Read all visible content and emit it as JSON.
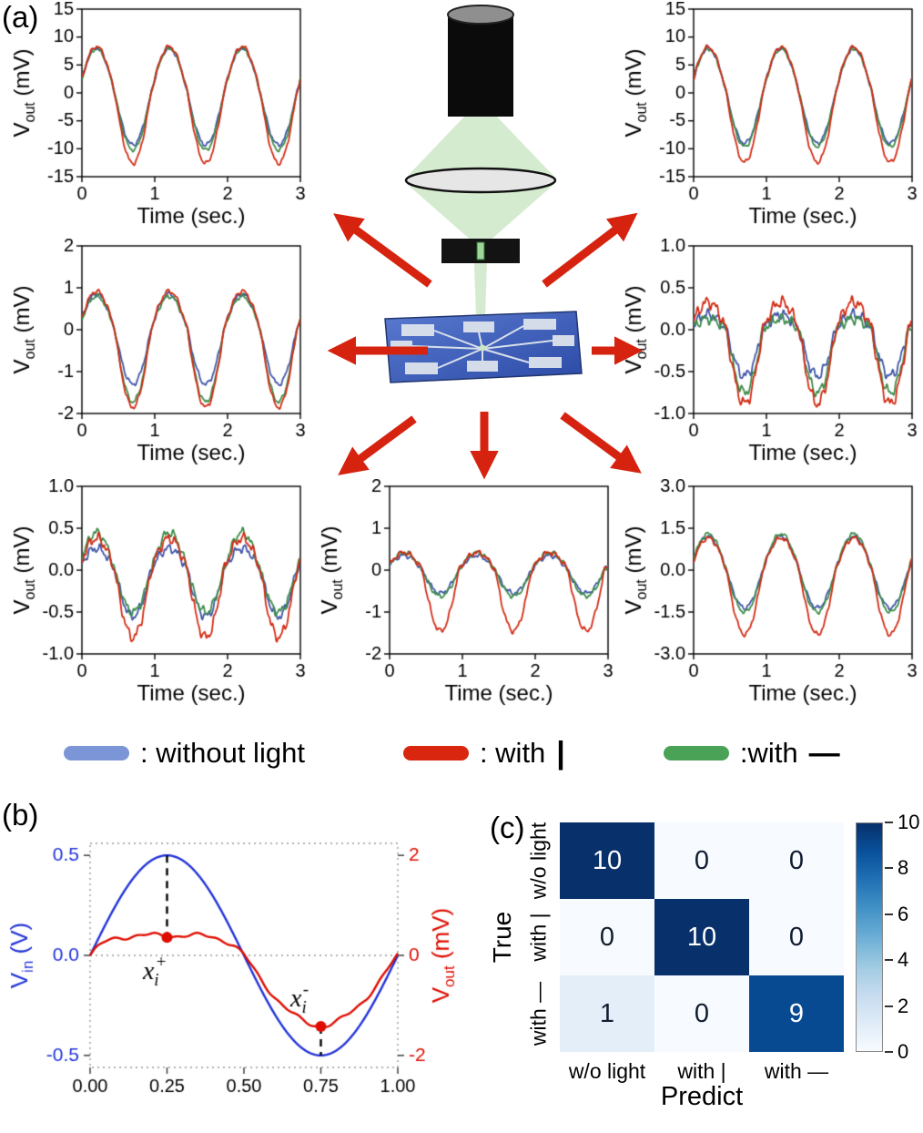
{
  "panels": {
    "a": {
      "label": "(a)"
    },
    "b": {
      "label": "(b)"
    },
    "c": {
      "label": "(c)"
    }
  },
  "axis_labels": {
    "y": {
      "main": "V",
      "sub": "out",
      "rest": " (mV)"
    },
    "x": "Time (sec.)"
  },
  "legend": {
    "items": [
      {
        "color_key": "legend_blue",
        "label": ": without light",
        "symbol": ""
      },
      {
        "color_key": "legend_red",
        "label": ": with",
        "symbol": "|"
      },
      {
        "color_key": "legend_green",
        "label": ":with",
        "symbol": "—"
      }
    ]
  },
  "colors": {
    "blue": "#4156a8",
    "red": "#d22c15",
    "green": "#3d8c49",
    "legend_blue": "#7b95d6",
    "legend_red": "#d8260f",
    "legend_green": "#4aa257",
    "arrow": "#d62310",
    "b_blue": "#2133d6",
    "b_red": "#de0d00",
    "beam_green": "#b9ddb0",
    "chip_blue": "#3c5fc2"
  },
  "chart_data": [
    {
      "id": "plot-a-top-left",
      "type": "line",
      "xlabel": "Time (sec.)",
      "ylabel": "Vout (mV)",
      "xlim": [
        0,
        3
      ],
      "xticks": [
        "0",
        "1",
        "2",
        "3"
      ],
      "ylim": [
        -15,
        15
      ],
      "yticks": [
        "15",
        "10",
        "5",
        "0",
        "-5",
        "-10",
        "-15"
      ],
      "period_sec": 1.0,
      "peak_time_sec": 0.2,
      "series": [
        {
          "name": "without light",
          "color_key": "blue",
          "amp_pos": 8.0,
          "amp_neg": 9.3,
          "noise": 0.18,
          "seed": 1
        },
        {
          "name": "with —",
          "color_key": "green",
          "amp_pos": 8.0,
          "amp_neg": 10.2,
          "noise": 0.18,
          "seed": 3
        },
        {
          "name": "with |",
          "color_key": "red",
          "amp_pos": 8.3,
          "amp_neg": 12.6,
          "noise": 0.2,
          "seed": 2
        }
      ]
    },
    {
      "id": "plot-a-top-right",
      "type": "line",
      "xlabel": "Time (sec.)",
      "ylabel": "Vout (mV)",
      "xlim": [
        0,
        3
      ],
      "xticks": [
        "0",
        "1",
        "2",
        "3"
      ],
      "ylim": [
        -15,
        15
      ],
      "yticks": [
        "15",
        "10",
        "5",
        "0",
        "-5",
        "-10",
        "-15"
      ],
      "period_sec": 1.0,
      "peak_time_sec": 0.2,
      "series": [
        {
          "name": "without light",
          "color_key": "blue",
          "amp_pos": 8.0,
          "amp_neg": 9.0,
          "noise": 0.18,
          "seed": 4
        },
        {
          "name": "with —",
          "color_key": "green",
          "amp_pos": 7.9,
          "amp_neg": 9.6,
          "noise": 0.18,
          "seed": 6
        },
        {
          "name": "with |",
          "color_key": "red",
          "amp_pos": 8.2,
          "amp_neg": 12.4,
          "noise": 0.2,
          "seed": 5
        }
      ]
    },
    {
      "id": "plot-a-middle-left",
      "type": "line",
      "xlabel": "Time (sec.)",
      "ylabel": "Vout (mV)",
      "xlim": [
        0,
        3
      ],
      "xticks": [
        "0",
        "1",
        "2",
        "3"
      ],
      "ylim": [
        -2,
        2
      ],
      "yticks": [
        "2",
        "1",
        "0",
        "-1",
        "-2"
      ],
      "period_sec": 1.0,
      "peak_time_sec": 0.2,
      "series": [
        {
          "name": "without light",
          "color_key": "blue",
          "amp_pos": 0.85,
          "amp_neg": 1.3,
          "noise": 0.03,
          "seed": 7
        },
        {
          "name": "with —",
          "color_key": "green",
          "amp_pos": 0.8,
          "amp_neg": 1.72,
          "noise": 0.03,
          "seed": 9
        },
        {
          "name": "with |",
          "color_key": "red",
          "amp_pos": 0.92,
          "amp_neg": 1.85,
          "noise": 0.03,
          "seed": 8
        }
      ]
    },
    {
      "id": "plot-a-middle-right",
      "type": "line",
      "xlabel": "Time (sec.)",
      "ylabel": "Vout (mV)",
      "xlim": [
        0,
        3
      ],
      "xticks": [
        "0",
        "1",
        "2",
        "3"
      ],
      "ylim": [
        -1,
        1
      ],
      "yticks": [
        "1.0",
        "0.5",
        "0.0",
        "-0.5",
        "-1.0"
      ],
      "period_sec": 1.0,
      "peak_time_sec": 0.2,
      "series": [
        {
          "name": "without light",
          "color_key": "blue",
          "amp_pos": 0.18,
          "amp_neg": 0.55,
          "noise": 0.035,
          "seed": 10
        },
        {
          "name": "with —",
          "color_key": "green",
          "amp_pos": 0.13,
          "amp_neg": 0.75,
          "noise": 0.035,
          "seed": 12
        },
        {
          "name": "with |",
          "color_key": "red",
          "amp_pos": 0.33,
          "amp_neg": 0.88,
          "noise": 0.04,
          "seed": 11
        }
      ]
    },
    {
      "id": "plot-a-bottom-left",
      "type": "line",
      "xlabel": "Time (sec.)",
      "ylabel": "Vout (mV)",
      "xlim": [
        0,
        3
      ],
      "xticks": [
        "0",
        "1",
        "2",
        "3"
      ],
      "ylim": [
        -1,
        1
      ],
      "yticks": [
        "1.0",
        "0.5",
        "0.0",
        "-0.5",
        "-1.0"
      ],
      "period_sec": 1.0,
      "peak_time_sec": 0.2,
      "series": [
        {
          "name": "without light",
          "color_key": "blue",
          "amp_pos": 0.26,
          "amp_neg": 0.55,
          "noise": 0.03,
          "seed": 13
        },
        {
          "name": "with —",
          "color_key": "green",
          "amp_pos": 0.45,
          "amp_neg": 0.5,
          "noise": 0.03,
          "seed": 15
        },
        {
          "name": "with |",
          "color_key": "red",
          "amp_pos": 0.38,
          "amp_neg": 0.8,
          "noise": 0.035,
          "seed": 14
        }
      ]
    },
    {
      "id": "plot-a-bottom-center",
      "type": "line",
      "xlabel": "Time (sec.)",
      "ylabel": "Vout (mV)",
      "xlim": [
        0,
        3
      ],
      "xticks": [
        "0",
        "1",
        "2",
        "3"
      ],
      "ylim": [
        -2,
        2
      ],
      "yticks": [
        "2",
        "1",
        "0",
        "-1",
        "-2"
      ],
      "period_sec": 1.0,
      "peak_time_sec": 0.2,
      "series": [
        {
          "name": "without light",
          "color_key": "blue",
          "amp_pos": 0.35,
          "amp_neg": 0.55,
          "noise": 0.03,
          "seed": 16
        },
        {
          "name": "with —",
          "color_key": "green",
          "amp_pos": 0.42,
          "amp_neg": 0.62,
          "noise": 0.03,
          "seed": 18
        },
        {
          "name": "with |",
          "color_key": "red",
          "amp_pos": 0.42,
          "amp_neg": 1.45,
          "noise": 0.035,
          "seed": 17
        }
      ]
    },
    {
      "id": "plot-a-bottom-right",
      "type": "line",
      "xlabel": "Time (sec.)",
      "ylabel": "Vout (mV)",
      "xlim": [
        0,
        3
      ],
      "xticks": [
        "0",
        "1",
        "2",
        "3"
      ],
      "ylim": [
        -3,
        3
      ],
      "yticks": [
        "3.0",
        "1.5",
        "0.0",
        "-1.5",
        "-3.0"
      ],
      "period_sec": 1.0,
      "peak_time_sec": 0.2,
      "series": [
        {
          "name": "without light",
          "color_key": "blue",
          "amp_pos": 1.22,
          "amp_neg": 1.35,
          "noise": 0.04,
          "seed": 19
        },
        {
          "name": "with —",
          "color_key": "green",
          "amp_pos": 1.3,
          "amp_neg": 1.5,
          "noise": 0.04,
          "seed": 21
        },
        {
          "name": "with |",
          "color_key": "red",
          "amp_pos": 1.15,
          "amp_neg": 2.3,
          "noise": 0.045,
          "seed": 20
        }
      ]
    },
    {
      "id": "panel-b",
      "type": "line",
      "xlim": [
        0,
        1
      ],
      "xticks": [
        "0.00",
        "0.25",
        "0.50",
        "0.75",
        "1.00"
      ],
      "left_axis": {
        "label": {
          "main": "V",
          "sub": "in",
          "rest": " (V)"
        },
        "ylim": [
          -0.56,
          0.56
        ],
        "yticks": [
          "0.5",
          "0.0",
          "-0.5"
        ]
      },
      "right_axis": {
        "label": {
          "main": "V",
          "sub": "out",
          "rest": " (mV)"
        },
        "ylim": [
          -2.24,
          2.24
        ],
        "yticks": [
          "2",
          "0",
          "-2"
        ]
      },
      "vin_amplitude_V": 0.5,
      "vout_peak_mV": 0.4,
      "vout_min_mV": -1.4,
      "markers": [
        {
          "x": 0.25,
          "label": {
            "main": "x",
            "sub": "i",
            "sup": "+"
          }
        },
        {
          "x": 0.75,
          "label": {
            "main": "x",
            "sub": "i",
            "sup": "-"
          }
        }
      ]
    },
    {
      "id": "confusion-matrix",
      "type": "heatmap",
      "true_label": "True",
      "predict_label": "Predict",
      "row_labels": [
        "w/o light",
        "with |",
        "with —"
      ],
      "col_labels": [
        "w/o light",
        "with |",
        "with —"
      ],
      "values": [
        [
          10,
          0,
          0
        ],
        [
          0,
          10,
          0
        ],
        [
          1,
          0,
          9
        ]
      ],
      "vmin": 0,
      "vmax": 10,
      "colorbar_ticks": [
        "10",
        "8",
        "6",
        "4",
        "2",
        "0"
      ],
      "colormap_stops": [
        "#f7fbff",
        "#deebf7",
        "#c6dbef",
        "#9ecae1",
        "#6baed6",
        "#4292c6",
        "#2171b5",
        "#08519c",
        "#08306b"
      ]
    }
  ]
}
